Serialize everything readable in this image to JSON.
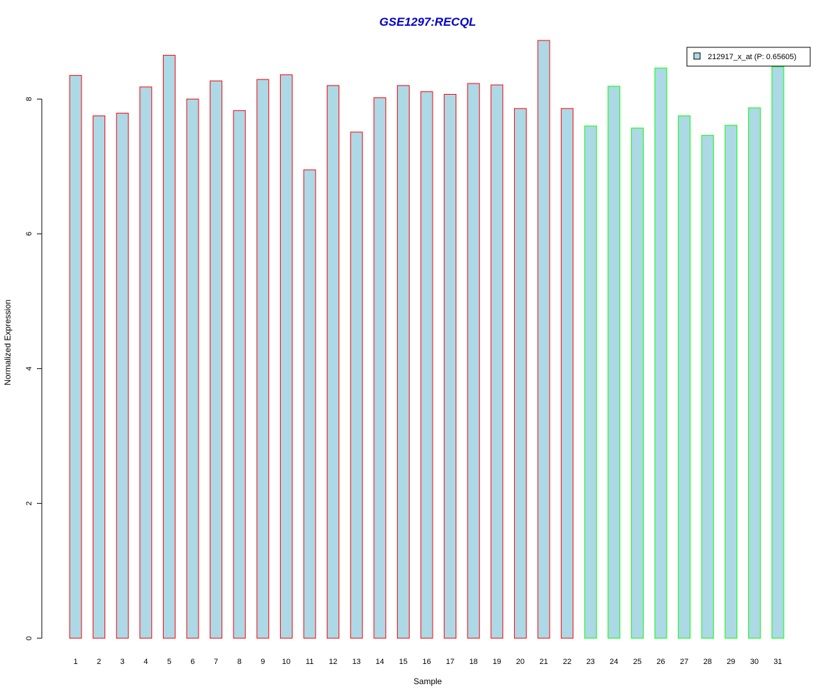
{
  "chart_data": {
    "type": "bar",
    "title": "GSE1297:RECQL",
    "xlabel": "Sample",
    "ylabel": "Normalized Expression",
    "ylim": [
      0,
      8.85
    ],
    "yticks": [
      0,
      2,
      4,
      6,
      8
    ],
    "grid": false,
    "legend_position": "top-right",
    "categories": [
      "1",
      "2",
      "3",
      "4",
      "5",
      "6",
      "7",
      "8",
      "9",
      "10",
      "11",
      "12",
      "13",
      "14",
      "15",
      "16",
      "17",
      "18",
      "19",
      "20",
      "21",
      "22",
      "23",
      "24",
      "25",
      "26",
      "27",
      "28",
      "29",
      "30",
      "31"
    ],
    "series": [
      {
        "name": "212917_x_at (P: 0.65605)",
        "values": [
          8.35,
          7.75,
          7.79,
          8.18,
          8.65,
          8.0,
          8.27,
          7.83,
          8.29,
          8.36,
          6.95,
          8.2,
          7.51,
          8.02,
          8.2,
          8.11,
          8.07,
          8.23,
          8.21,
          7.86,
          8.87,
          7.86,
          7.6,
          8.19,
          7.57,
          8.46,
          7.75,
          7.46,
          7.61,
          7.87,
          8.48
        ]
      }
    ],
    "group_sizes": [
      22,
      9
    ],
    "colors": {
      "fill": "#add8e6",
      "group1_border": "#ff0000",
      "group2_border": "#00ff00",
      "title": "#0000cc",
      "axis": "#000000"
    }
  }
}
